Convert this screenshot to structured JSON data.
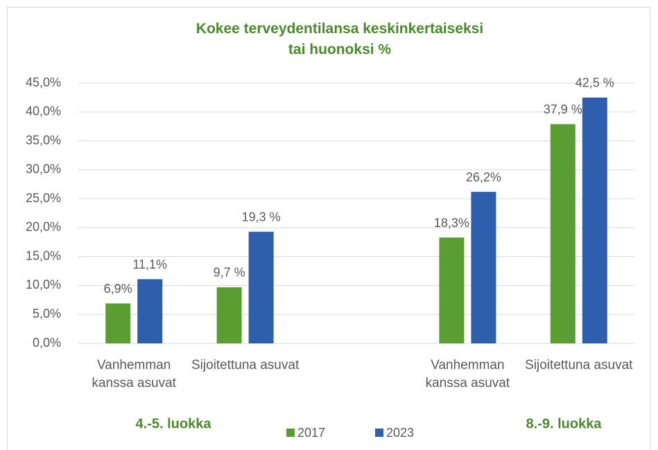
{
  "chart_data": {
    "type": "bar",
    "title": "Kokee terveydentilansa keskinkertaiseksi\ntai huonoksi %",
    "categories": [
      "Vanhemman kanssa asuvat",
      "Sijoitettuna asuvat",
      null,
      "Vanhemman kanssa asuvat",
      "Sijoitettuna asuvat"
    ],
    "series": [
      {
        "name": "2017",
        "color": "#5a9e32",
        "values": [
          6.9,
          9.7,
          null,
          18.3,
          37.9
        ],
        "value_labels": [
          "6,9%",
          "9,7 %",
          null,
          "18,3%",
          "37,9 %"
        ]
      },
      {
        "name": "2023",
        "color": "#2e5fad",
        "values": [
          11.1,
          19.3,
          null,
          26.2,
          42.5
        ],
        "value_labels": [
          "11,1%",
          "19,3 %",
          null,
          "26,2%",
          "42,5 %"
        ]
      }
    ],
    "ylim": [
      0,
      45
    ],
    "yticks": [
      {
        "value": 0,
        "label": "0,0%"
      },
      {
        "value": 5,
        "label": "5,0%"
      },
      {
        "value": 10,
        "label": "10,0%"
      },
      {
        "value": 15,
        "label": "15,0%"
      },
      {
        "value": 20,
        "label": "20,0%"
      },
      {
        "value": 25,
        "label": "25,0%"
      },
      {
        "value": 30,
        "label": "30,0%"
      },
      {
        "value": 35,
        "label": "35,0%"
      },
      {
        "value": 40,
        "label": "40,0%"
      },
      {
        "value": 45,
        "label": "45,0%"
      }
    ],
    "grid": true,
    "annotations": [
      "4.-5. luokka",
      "8.-9. luokka"
    ],
    "legend": "bottom"
  }
}
